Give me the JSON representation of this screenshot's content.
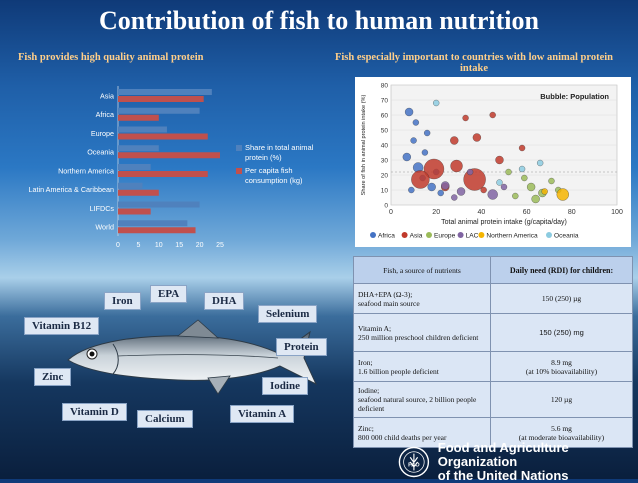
{
  "title": "Contribution of fish to human nutrition",
  "left_subtitle": "Fish provides high quality animal protein",
  "right_subtitle_line1": "Fish especially important to countries with low animal protein",
  "right_subtitle_line2": "intake",
  "bar_legend": [
    "Share in total animal protein (%)",
    "Per capita fish consumption (kg)"
  ],
  "colors": {
    "share": "#4f81bd",
    "percap": "#c0504d",
    "table_header": "#bcd0ec",
    "table_cell": "#dbe6f5"
  },
  "chart_data": [
    {
      "type": "bar",
      "orientation": "horizontal",
      "categories": [
        "Asia",
        "Africa",
        "Europe",
        "Oceania",
        "Northern America",
        "Latin America & Caribbean",
        "LIFDCs",
        "World"
      ],
      "series": [
        {
          "name": "Share in total animal protein (%)",
          "values": [
            23,
            20,
            12,
            10,
            8,
            6,
            20,
            17
          ]
        },
        {
          "name": "Per capita fish consumption (kg)",
          "values": [
            21,
            10,
            22,
            25,
            22,
            10,
            8,
            19
          ]
        }
      ],
      "xlim": [
        0,
        25
      ],
      "xticks": [
        "0",
        "5",
        "10",
        "15",
        "20",
        "25"
      ]
    },
    {
      "type": "scatter",
      "title": "Bubble: Population",
      "xlabel": "Total animal protein intake (g/capita/day)",
      "ylabel": "Share of fish in animal protein intake (%)",
      "xticks": [
        "0",
        "20",
        "40",
        "60",
        "80",
        "100"
      ],
      "yticks": [
        "0",
        "10",
        "20",
        "30",
        "40",
        "50",
        "60",
        "70",
        "80"
      ],
      "legend": [
        "Africa",
        "Asia",
        "Europe",
        "LAC",
        "Northern America",
        "Oceania"
      ],
      "legend_colors": [
        "#4472c4",
        "#c0392b",
        "#9bbb59",
        "#8064a2",
        "#f5b400",
        "#8ccbe0"
      ],
      "points": [
        {
          "g": 0,
          "x": 8,
          "y": 62,
          "s": 4
        },
        {
          "g": 0,
          "x": 10,
          "y": 43,
          "s": 3
        },
        {
          "g": 0,
          "x": 12,
          "y": 25,
          "s": 5
        },
        {
          "g": 0,
          "x": 14,
          "y": 18,
          "s": 3
        },
        {
          "g": 0,
          "x": 7,
          "y": 32,
          "s": 4
        },
        {
          "g": 0,
          "x": 15,
          "y": 35,
          "s": 3
        },
        {
          "g": 0,
          "x": 18,
          "y": 12,
          "s": 4
        },
        {
          "g": 0,
          "x": 20,
          "y": 22,
          "s": 3
        },
        {
          "g": 0,
          "x": 22,
          "y": 8,
          "s": 3
        },
        {
          "g": 0,
          "x": 11,
          "y": 55,
          "s": 3
        },
        {
          "g": 0,
          "x": 9,
          "y": 10,
          "s": 3
        },
        {
          "g": 0,
          "x": 16,
          "y": 48,
          "s": 3
        },
        {
          "g": 1,
          "x": 19,
          "y": 24,
          "s": 10
        },
        {
          "g": 1,
          "x": 13,
          "y": 17,
          "s": 9
        },
        {
          "g": 1,
          "x": 29,
          "y": 26,
          "s": 6
        },
        {
          "g": 1,
          "x": 37,
          "y": 17,
          "s": 11
        },
        {
          "g": 1,
          "x": 38,
          "y": 45,
          "s": 4
        },
        {
          "g": 1,
          "x": 28,
          "y": 43,
          "s": 4
        },
        {
          "g": 1,
          "x": 58,
          "y": 38,
          "s": 3
        },
        {
          "g": 1,
          "x": 24,
          "y": 12,
          "s": 4
        },
        {
          "g": 1,
          "x": 41,
          "y": 10,
          "s": 3
        },
        {
          "g": 1,
          "x": 45,
          "y": 60,
          "s": 3
        },
        {
          "g": 1,
          "x": 33,
          "y": 58,
          "s": 3
        },
        {
          "g": 1,
          "x": 48,
          "y": 30,
          "s": 4
        },
        {
          "g": 2,
          "x": 62,
          "y": 12,
          "s": 4
        },
        {
          "g": 2,
          "x": 67,
          "y": 8,
          "s": 4
        },
        {
          "g": 2,
          "x": 55,
          "y": 6,
          "s": 3
        },
        {
          "g": 2,
          "x": 71,
          "y": 16,
          "s": 3
        },
        {
          "g": 2,
          "x": 52,
          "y": 22,
          "s": 3
        },
        {
          "g": 2,
          "x": 64,
          "y": 4,
          "s": 4
        },
        {
          "g": 2,
          "x": 74,
          "y": 10,
          "s": 3
        },
        {
          "g": 2,
          "x": 59,
          "y": 18,
          "s": 3
        },
        {
          "g": 3,
          "x": 24,
          "y": 13,
          "s": 4
        },
        {
          "g": 3,
          "x": 31,
          "y": 9,
          "s": 4
        },
        {
          "g": 3,
          "x": 45,
          "y": 7,
          "s": 5
        },
        {
          "g": 3,
          "x": 35,
          "y": 22,
          "s": 3
        },
        {
          "g": 3,
          "x": 28,
          "y": 5,
          "s": 3
        },
        {
          "g": 3,
          "x": 50,
          "y": 12,
          "s": 3
        },
        {
          "g": 4,
          "x": 76,
          "y": 7,
          "s": 6
        },
        {
          "g": 4,
          "x": 68,
          "y": 9,
          "s": 3
        },
        {
          "g": 5,
          "x": 48,
          "y": 15,
          "s": 3
        },
        {
          "g": 5,
          "x": 58,
          "y": 24,
          "s": 3
        },
        {
          "g": 5,
          "x": 66,
          "y": 28,
          "s": 3
        },
        {
          "g": 5,
          "x": 20,
          "y": 68,
          "s": 3
        }
      ]
    }
  ],
  "nutrients": {
    "iron": "Iron",
    "epa": "EPA",
    "dha": "DHA",
    "selenium": "Selenium",
    "vitamin_b12": "Vitamin B12",
    "protein": "Protein",
    "zinc": "Zinc",
    "iodine": "Iodine",
    "vitamin_d": "Vitamin D",
    "calcium": "Calcium",
    "vitamin_a": "Vitamin A"
  },
  "table": {
    "headers": [
      "Fish, a source of nutrients",
      "Daily need (RDI) for children:"
    ],
    "rows": [
      {
        "left_line1": "DHA+EPA (Ω-3);",
        "left_line2": "seafood main source",
        "right_line1": "150 (250) µg",
        "right_line2": ""
      },
      {
        "left_line1": "Vitamin A;",
        "left_line2": "250 million preschool children deficient",
        "right_line1": "150 (250) mg",
        "right_line2": ""
      },
      {
        "left_line1": "Iron;",
        "left_line2": "1.6 billion people deficient",
        "right_line1": "8.9 mg",
        "right_line2": "(at 10% bioavailability)"
      },
      {
        "left_line1": "Iodine;",
        "left_line2": "seafood natural source, 2 billion people deficient",
        "right_line1": "120 µg",
        "right_line2": ""
      },
      {
        "left_line1": "Zinc;",
        "left_line2": "800 000 child deaths per year",
        "right_line1": "5.6 mg",
        "right_line2": "(at moderate bioavailability)"
      }
    ]
  },
  "fao": {
    "line1": "Food and Agriculture Organization",
    "line2": "of the United Nations",
    "logo_text": "FIAT PANIS"
  }
}
